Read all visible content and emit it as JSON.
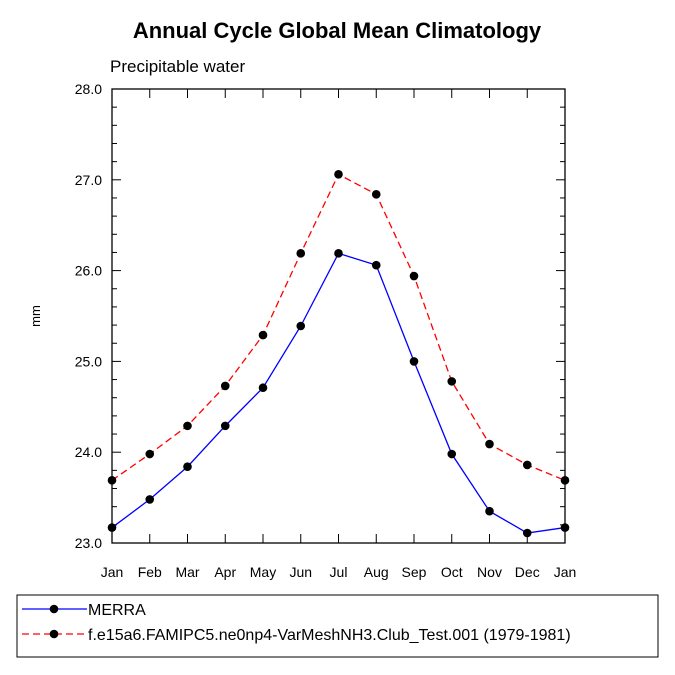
{
  "chart_data": {
    "type": "line",
    "title": "Annual Cycle Global Mean Climatology",
    "subtitle": "Precipitable water",
    "xlabel": "",
    "ylabel": "mm",
    "categories": [
      "Jan",
      "Feb",
      "Mar",
      "Apr",
      "May",
      "Jun",
      "Jul",
      "Aug",
      "Sep",
      "Oct",
      "Nov",
      "Dec",
      "Jan"
    ],
    "ylim": [
      23.0,
      28.0
    ],
    "yticks": [
      "23.0",
      "24.0",
      "25.0",
      "26.0",
      "27.0",
      "28.0"
    ],
    "grid": false,
    "legend_placement": "bottom",
    "series": [
      {
        "name": "MERRA",
        "color": "#0000ff",
        "line_style": "solid",
        "marker": "filled-circle",
        "values": [
          23.17,
          23.48,
          23.84,
          24.29,
          24.71,
          25.39,
          26.19,
          26.06,
          25.0,
          23.98,
          23.35,
          23.11,
          23.17
        ]
      },
      {
        "name": "f.e15a6.FAMIPC5.ne0np4-VarMeshNH3.Club_Test.001 (1979-1981)",
        "color": "#ff0000",
        "line_style": "dashed",
        "marker": "filled-circle",
        "values": [
          23.69,
          23.98,
          24.29,
          24.73,
          25.29,
          26.19,
          27.06,
          26.84,
          25.94,
          24.78,
          24.09,
          23.86,
          23.69
        ]
      }
    ]
  }
}
